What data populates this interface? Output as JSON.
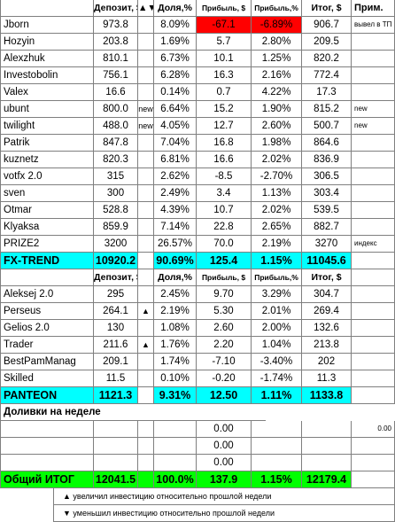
{
  "header1": [
    "",
    "Депозит, $",
    "▲▼",
    "Доля,%",
    "Прибыль, $",
    "Прибыль,%",
    "Итог, $",
    "Прим."
  ],
  "group1": [
    {
      "name": "Jborn",
      "dep": "973.8",
      "mark": "",
      "share": "8.09%",
      "profit": "-67.1",
      "pct": "-6.89%",
      "total": "906.7",
      "note": "вывел в ТП",
      "neg": true
    },
    {
      "name": "Hozyin",
      "dep": "203.8",
      "mark": "",
      "share": "1.69%",
      "profit": "5.7",
      "pct": "2.80%",
      "total": "209.5",
      "note": ""
    },
    {
      "name": "Alexzhuk",
      "dep": "810.1",
      "mark": "",
      "share": "6.73%",
      "profit": "10.1",
      "pct": "1.25%",
      "total": "820.2",
      "note": ""
    },
    {
      "name": "Investobolin",
      "dep": "756.1",
      "mark": "",
      "share": "6.28%",
      "profit": "16.3",
      "pct": "2.16%",
      "total": "772.4",
      "note": ""
    },
    {
      "name": "Valex",
      "dep": "16.6",
      "mark": "",
      "share": "0.14%",
      "profit": "0.7",
      "pct": "4.22%",
      "total": "17.3",
      "note": ""
    },
    {
      "name": "ubunt",
      "dep": "800.0",
      "mark": "new",
      "share": "6.64%",
      "profit": "15.2",
      "pct": "1.90%",
      "total": "815.2",
      "note": "new"
    },
    {
      "name": "twilight",
      "dep": "488.0",
      "mark": "new",
      "share": "4.05%",
      "profit": "12.7",
      "pct": "2.60%",
      "total": "500.7",
      "note": "new"
    },
    {
      "name": "Patrik",
      "dep": "847.8",
      "mark": "",
      "share": "7.04%",
      "profit": "16.8",
      "pct": "1.98%",
      "total": "864.6",
      "note": ""
    },
    {
      "name": "kuznetz",
      "dep": "820.3",
      "mark": "",
      "share": "6.81%",
      "profit": "16.6",
      "pct": "2.02%",
      "total": "836.9",
      "note": ""
    },
    {
      "name": "votfx 2.0",
      "dep": "315",
      "mark": "",
      "share": "2.62%",
      "profit": "-8.5",
      "pct": "-2.70%",
      "total": "306.5",
      "note": ""
    },
    {
      "name": "sven",
      "dep": "300",
      "mark": "",
      "share": "2.49%",
      "profit": "3.4",
      "pct": "1.13%",
      "total": "303.4",
      "note": ""
    },
    {
      "name": "Otmar",
      "dep": "528.8",
      "mark": "",
      "share": "4.39%",
      "profit": "10.7",
      "pct": "2.02%",
      "total": "539.5",
      "note": ""
    },
    {
      "name": "Klyaksa",
      "dep": "859.9",
      "mark": "",
      "share": "7.14%",
      "profit": "22.8",
      "pct": "2.65%",
      "total": "882.7",
      "note": ""
    },
    {
      "name": "PRIZE2",
      "dep": "3200",
      "mark": "",
      "share": "26.57%",
      "profit": "70.0",
      "pct": "2.19%",
      "total": "3270",
      "note": "индекс"
    }
  ],
  "total1": {
    "name": "FX-TREND",
    "dep": "10920.2",
    "share": "90.69%",
    "profit": "125.4",
    "pct": "1.15%",
    "total": "11045.6"
  },
  "header2": [
    "",
    "Депозит, $",
    "",
    "Доля,%",
    "Прибыль, $",
    "Прибыль,%",
    "Итог, $",
    ""
  ],
  "group2": [
    {
      "name": "Aleksej 2.0",
      "dep": "295",
      "mark": "",
      "share": "2.45%",
      "profit": "9.70",
      "pct": "3.29%",
      "total": "304.7"
    },
    {
      "name": "Perseus",
      "dep": "264.1",
      "mark": "▲",
      "share": "2.19%",
      "profit": "5.30",
      "pct": "2.01%",
      "total": "269.4"
    },
    {
      "name": "Gelios 2.0",
      "dep": "130",
      "mark": "",
      "share": "1.08%",
      "profit": "2.60",
      "pct": "2.00%",
      "total": "132.6"
    },
    {
      "name": "Trader",
      "dep": "211.6",
      "mark": "▲",
      "share": "1.76%",
      "profit": "2.20",
      "pct": "1.04%",
      "total": "213.8"
    },
    {
      "name": "BestPamManag",
      "dep": "209.1",
      "mark": "",
      "share": "1.74%",
      "profit": "-7.10",
      "pct": "-3.40%",
      "total": "202"
    },
    {
      "name": "Skilled",
      "dep": "11.5",
      "mark": "",
      "share": "0.10%",
      "profit": "-0.20",
      "pct": "-1.74%",
      "total": "11.3"
    }
  ],
  "total2": {
    "name": "PANTEON",
    "dep": "1121.3",
    "share": "9.31%",
    "profit": "12.50",
    "pct": "1.11%",
    "total": "1133.8"
  },
  "section_title": "Доливки на неделе",
  "topups": [
    {
      "profit": "0.00",
      "note": "0.00"
    },
    {
      "profit": "0.00",
      "note": ""
    },
    {
      "profit": "0.00",
      "note": ""
    }
  ],
  "grand": {
    "name": "Общий ИТОГ",
    "dep": "12041.5",
    "share": "100.0%",
    "profit": "137.9",
    "pct": "1.15%",
    "total": "12179.4"
  },
  "legend": [
    "▲ увеличил инвестицию относительно прошлой недели",
    "▼ уменьшил инвестицию относительно прошлой недели"
  ]
}
